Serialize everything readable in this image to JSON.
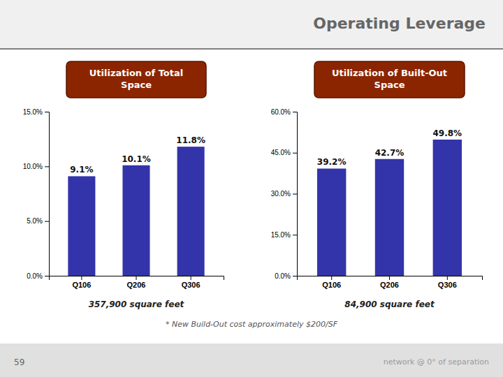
{
  "title": "Operating Leverage",
  "annotations": [
    "* New Build-Out cost approximately $200/SF",
    "59",
    "network @ 0° of separation"
  ],
  "chart_data": [
    {
      "type": "bar",
      "title": "Utilization of Total\nSpace",
      "categories": [
        "Q106",
        "Q206",
        "Q306"
      ],
      "values": [
        9.1,
        10.1,
        11.8
      ],
      "value_labels": [
        "9.1%",
        "10.1%",
        "11.8%"
      ],
      "color": "#3333aa",
      "ylim": [
        0,
        15
      ],
      "yticks": [
        {
          "value": 0.0,
          "label": "0.0%"
        },
        {
          "value": 5.0,
          "label": "5.0%"
        },
        {
          "value": 10.0,
          "label": "10.0%"
        },
        {
          "value": 15.0,
          "label": "15.0%"
        }
      ],
      "grid": false,
      "data_labels": true,
      "annotations": [
        "357,900 square feet"
      ]
    },
    {
      "type": "bar",
      "title": "Utilization of Built-Out\nSpace",
      "categories": [
        "Q106",
        "Q206",
        "Q306"
      ],
      "values": [
        39.2,
        42.7,
        49.8
      ],
      "value_labels": [
        "39.2%",
        "42.7%",
        "49.8%"
      ],
      "color": "#3333aa",
      "ylim": [
        0,
        60
      ],
      "yticks": [
        {
          "value": 0.0,
          "label": "0.0%"
        },
        {
          "value": 15.0,
          "label": "15.0%"
        },
        {
          "value": 30.0,
          "label": "30.0%"
        },
        {
          "value": 45.0,
          "label": "45.0%"
        },
        {
          "value": 60.0,
          "label": "60.0%"
        }
      ],
      "grid": false,
      "data_labels": true,
      "annotations": [
        "84,900 square feet"
      ]
    }
  ]
}
